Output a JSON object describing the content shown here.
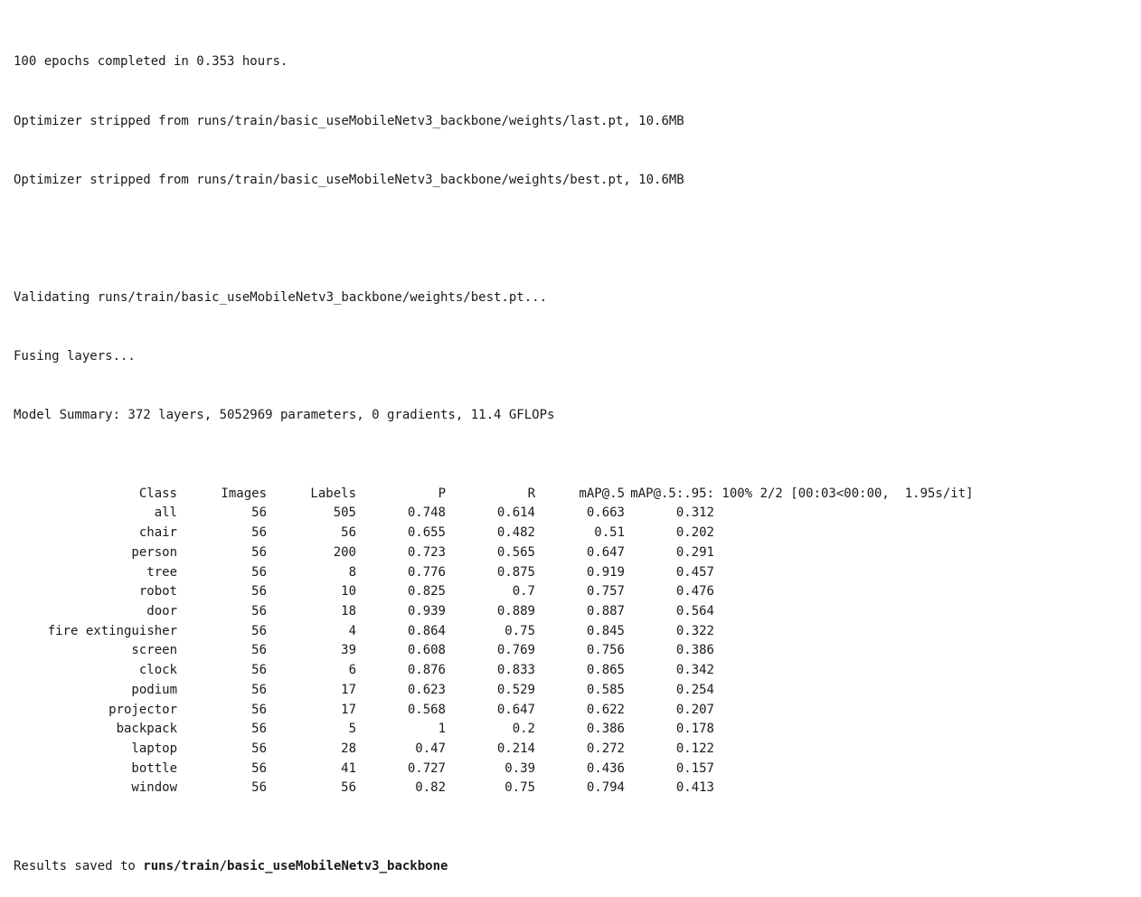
{
  "log": {
    "line_epochs": "100 epochs completed in 0.353 hours.",
    "line_last": "Optimizer stripped from runs/train/basic_useMobileNetv3_backbone/weights/last.pt, 10.6MB",
    "line_best": "Optimizer stripped from runs/train/basic_useMobileNetv3_backbone/weights/best.pt, 10.6MB",
    "line_validating": "Validating runs/train/basic_useMobileNetv3_backbone/weights/best.pt...",
    "line_fusing": "Fusing layers...",
    "line_summary": "Model Summary: 372 layers, 5052969 parameters, 0 gradients, 11.4 GFLOPs",
    "results_prefix": "Results saved to ",
    "results_path": "runs/train/basic_useMobileNetv3_backbone"
  },
  "table": {
    "headers": {
      "class": "Class",
      "images": "Images",
      "labels": "Labels",
      "p": "P",
      "r": "R",
      "map5": "mAP@.5",
      "map595": "mAP@.5:.95:",
      "progress": " 100% 2/2 [00:03<00:00,  1.95s/it]"
    },
    "rows": [
      {
        "class": "all",
        "images": "56",
        "labels": "505",
        "p": "0.748",
        "r": "0.614",
        "map5": "0.663",
        "map595": "0.312"
      },
      {
        "class": "chair",
        "images": "56",
        "labels": "56",
        "p": "0.655",
        "r": "0.482",
        "map5": "0.51",
        "map595": "0.202"
      },
      {
        "class": "person",
        "images": "56",
        "labels": "200",
        "p": "0.723",
        "r": "0.565",
        "map5": "0.647",
        "map595": "0.291"
      },
      {
        "class": "tree",
        "images": "56",
        "labels": "8",
        "p": "0.776",
        "r": "0.875",
        "map5": "0.919",
        "map595": "0.457"
      },
      {
        "class": "robot",
        "images": "56",
        "labels": "10",
        "p": "0.825",
        "r": "0.7",
        "map5": "0.757",
        "map595": "0.476"
      },
      {
        "class": "door",
        "images": "56",
        "labels": "18",
        "p": "0.939",
        "r": "0.889",
        "map5": "0.887",
        "map595": "0.564"
      },
      {
        "class": "fire extinguisher",
        "images": "56",
        "labels": "4",
        "p": "0.864",
        "r": "0.75",
        "map5": "0.845",
        "map595": "0.322"
      },
      {
        "class": "screen",
        "images": "56",
        "labels": "39",
        "p": "0.608",
        "r": "0.769",
        "map5": "0.756",
        "map595": "0.386"
      },
      {
        "class": "clock",
        "images": "56",
        "labels": "6",
        "p": "0.876",
        "r": "0.833",
        "map5": "0.865",
        "map595": "0.342"
      },
      {
        "class": "podium",
        "images": "56",
        "labels": "17",
        "p": "0.623",
        "r": "0.529",
        "map5": "0.585",
        "map595": "0.254"
      },
      {
        "class": "projector",
        "images": "56",
        "labels": "17",
        "p": "0.568",
        "r": "0.647",
        "map5": "0.622",
        "map595": "0.207"
      },
      {
        "class": "backpack",
        "images": "56",
        "labels": "5",
        "p": "1",
        "r": "0.2",
        "map5": "0.386",
        "map595": "0.178"
      },
      {
        "class": "laptop",
        "images": "56",
        "labels": "28",
        "p": "0.47",
        "r": "0.214",
        "map5": "0.272",
        "map595": "0.122"
      },
      {
        "class": "bottle",
        "images": "56",
        "labels": "41",
        "p": "0.727",
        "r": "0.39",
        "map5": "0.436",
        "map595": "0.157"
      },
      {
        "class": "window",
        "images": "56",
        "labels": "56",
        "p": "0.82",
        "r": "0.75",
        "map5": "0.794",
        "map595": "0.413"
      }
    ]
  }
}
